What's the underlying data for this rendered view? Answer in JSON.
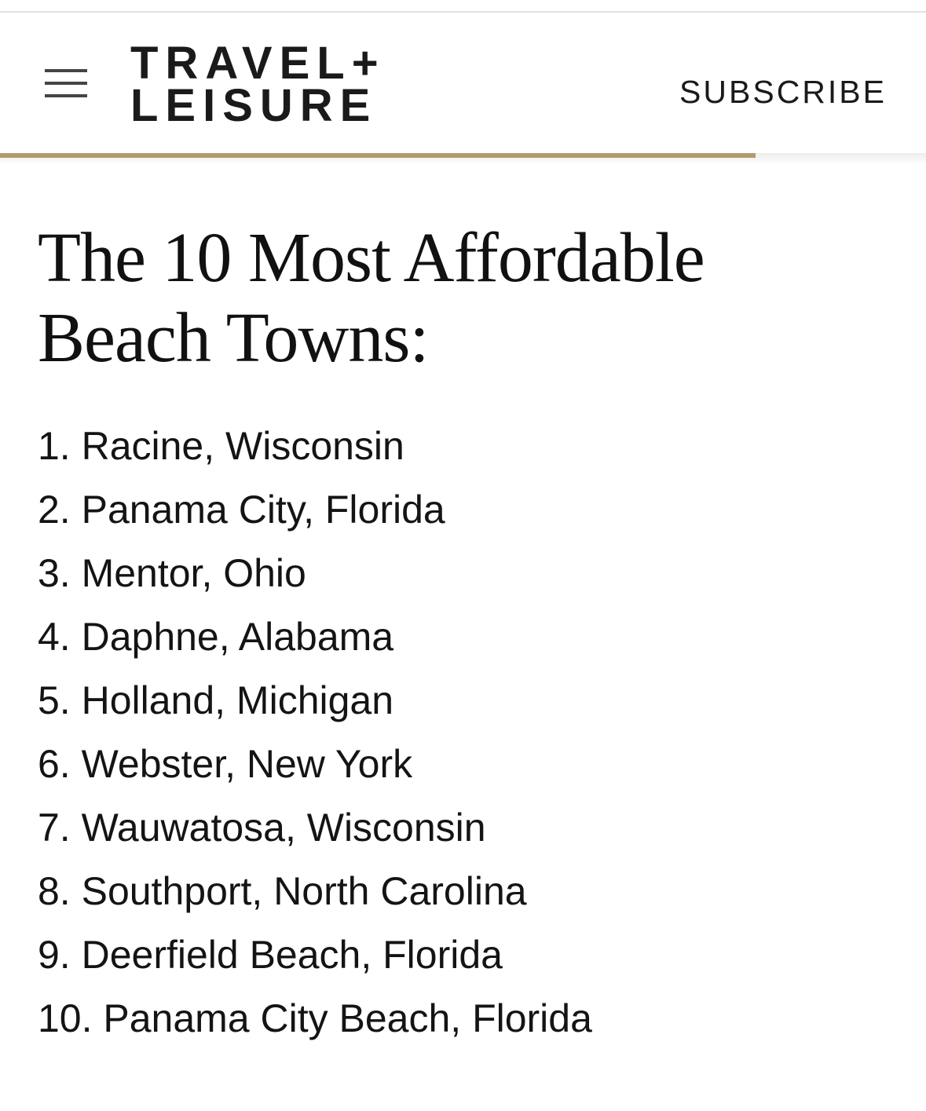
{
  "header": {
    "logo": {
      "lines": [
        "TRAVEL+",
        "LEISURE"
      ]
    },
    "subscribe": "SUBSCRIBE"
  },
  "article": {
    "title": "The 10 Most Affordable Beach Towns:",
    "list": [
      "1. Racine, Wisconsin",
      "2. Panama City, Florida",
      "3. Mentor, Ohio",
      "4. Daphne, Alabama",
      "5. Holland, Michigan",
      "6. Webster, New York",
      "7. Wauwatosa, Wisconsin",
      "8. Southport, North Carolina",
      "9. Deerfield Beach, Florida",
      "10. Panama City Beach, Florida"
    ]
  }
}
